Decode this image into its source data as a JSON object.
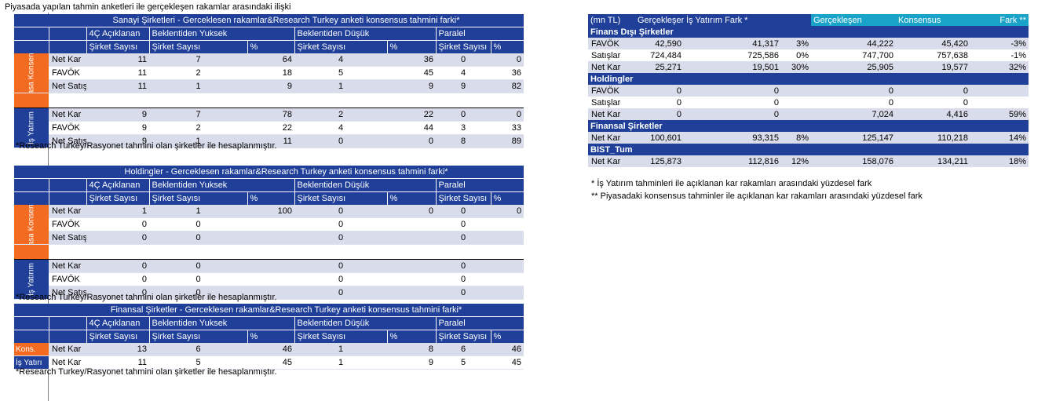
{
  "title": "Piyasada yapılan tahmin anketleri ile gerçekleşen rakamlar arasındaki ilişki",
  "footnote": "*Research Turkey/Rasyonet  tahmini olan şirketler ile hesaplanmıştır.",
  "headers": {
    "c4q": "4Ç Açıklanan",
    "above": "Beklentiden Yuksek",
    "below": "Beklentiden Düşük",
    "parallel": "Paralel",
    "count": "Şirket Sayısı",
    "pct": "%"
  },
  "side_labels": {
    "konsensus": "Piyasa Konsensus",
    "isyatirim": "İş Yatırım",
    "kons_short": "Kons.",
    "is_short": "İş Yatırı"
  },
  "t1": {
    "title": "Sanayi Şirketleri - Gerceklesen rakamlar&Research Turkey anketi konsensus tahmini farki*",
    "konsensus_rows": [
      {
        "label": "Net Kar",
        "c4q": "11",
        "above_n": "7",
        "above_p": "64",
        "below_n": "4",
        "below_p": "36",
        "par_n": "0",
        "par_p": "0"
      },
      {
        "label": "FAVÖK",
        "c4q": "11",
        "above_n": "2",
        "above_p": "18",
        "below_n": "5",
        "below_p": "45",
        "par_n": "4",
        "par_p": "36"
      },
      {
        "label": "Net Satış",
        "c4q": "11",
        "above_n": "1",
        "above_p": "9",
        "below_n": "1",
        "below_p": "9",
        "par_n": "9",
        "par_p": "82"
      }
    ],
    "isyatirim_rows": [
      {
        "label": "Net Kar",
        "c4q": "9",
        "above_n": "7",
        "above_p": "78",
        "below_n": "2",
        "below_p": "22",
        "par_n": "0",
        "par_p": "0"
      },
      {
        "label": "FAVÖK",
        "c4q": "9",
        "above_n": "2",
        "above_p": "22",
        "below_n": "4",
        "below_p": "44",
        "par_n": "3",
        "par_p": "33"
      },
      {
        "label": "Net Satış",
        "c4q": "9",
        "above_n": "1",
        "above_p": "11",
        "below_n": "0",
        "below_p": "0",
        "par_n": "8",
        "par_p": "89"
      }
    ]
  },
  "t2": {
    "title": "Holdingler - Gerceklesen rakamlar&Research Turkey anketi konsensus tahmini farki*",
    "konsensus_rows": [
      {
        "label": "Net Kar",
        "c4q": "1",
        "above_n": "1",
        "above_p": "100",
        "below_n": "0",
        "below_p": "0",
        "par_n": "0",
        "par_p": "0"
      },
      {
        "label": "FAVÖK",
        "c4q": "0",
        "above_n": "0",
        "above_p": "",
        "below_n": "0",
        "below_p": "",
        "par_n": "0",
        "par_p": ""
      },
      {
        "label": "Net Satış",
        "c4q": "0",
        "above_n": "0",
        "above_p": "",
        "below_n": "0",
        "below_p": "",
        "par_n": "0",
        "par_p": ""
      }
    ],
    "isyatirim_rows": [
      {
        "label": "Net Kar",
        "c4q": "0",
        "above_n": "0",
        "above_p": "",
        "below_n": "0",
        "below_p": "",
        "par_n": "0",
        "par_p": ""
      },
      {
        "label": "FAVÖK",
        "c4q": "0",
        "above_n": "0",
        "above_p": "",
        "below_n": "0",
        "below_p": "",
        "par_n": "0",
        "par_p": ""
      },
      {
        "label": "Net Satış",
        "c4q": "0",
        "above_n": "0",
        "above_p": "",
        "below_n": "0",
        "below_p": "",
        "par_n": "0",
        "par_p": ""
      }
    ]
  },
  "t3": {
    "title": "Finansal Şirketler - Gerceklesen rakamlar&Research Turkey anketi konsensus tahmini farki*",
    "rows": [
      {
        "label": "Net Kar",
        "c4q": "13",
        "above_n": "6",
        "above_p": "46",
        "below_n": "1",
        "below_p": "8",
        "par_n": "6",
        "par_p": "46"
      },
      {
        "label": "Net Kar",
        "c4q": "11",
        "above_n": "5",
        "above_p": "45",
        "below_n": "1",
        "below_p": "9",
        "par_n": "5",
        "par_p": "45"
      }
    ]
  },
  "right": {
    "headers": [
      "(mn TL)",
      "Gerçekleşen",
      "İş Yatırım Fark *",
      "Gerçekleşen",
      "Konsensus",
      "Fark **"
    ],
    "sections": [
      {
        "name": "Finans Dışı Şirketler",
        "rows": [
          {
            "label": "FAVÖK",
            "g1": "42,590",
            "is": "41,317",
            "f1": "3%",
            "g2": "44,222",
            "k": "45,420",
            "f2": "-3%"
          },
          {
            "label": "Satışlar",
            "g1": "724,484",
            "is": "725,586",
            "f1": "0%",
            "g2": "747,700",
            "k": "757,638",
            "f2": "-1%"
          },
          {
            "label": "Net Kar",
            "g1": "25,271",
            "is": "19,501",
            "f1": "30%",
            "g2": "25,905",
            "k": "19,577",
            "f2": "32%"
          }
        ]
      },
      {
        "name": "Holdingler",
        "rows": [
          {
            "label": "FAVÖK",
            "g1": "0",
            "is": "0",
            "f1": "",
            "g2": "0",
            "k": "0",
            "f2": ""
          },
          {
            "label": "Satışlar",
            "g1": "0",
            "is": "0",
            "f1": "",
            "g2": "0",
            "k": "0",
            "f2": ""
          },
          {
            "label": "Net Kar",
            "g1": "0",
            "is": "0",
            "f1": "",
            "g2": "7,024",
            "k": "4,416",
            "f2": "59%"
          }
        ]
      },
      {
        "name": "Finansal Şirketler",
        "rows": [
          {
            "label": "Net Kar",
            "g1": "100,601",
            "is": "93,315",
            "f1": "8%",
            "g2": "125,147",
            "k": "110,218",
            "f2": "14%"
          }
        ]
      },
      {
        "name": "BIST_Tum",
        "rows": [
          {
            "label": "Net Kar",
            "g1": "125,873",
            "is": "112,816",
            "f1": "12%",
            "g2": "158,076",
            "k": "134,211",
            "f2": "18%"
          }
        ]
      }
    ],
    "notes": [
      "* İş Yatırım tahminleri ile açıklanan kar rakamları arasındaki yüzdesel fark",
      "** Piyasadaki konsensus tahminler ile açıklanan kar rakamları arasındaki yüzdesel fark"
    ]
  }
}
